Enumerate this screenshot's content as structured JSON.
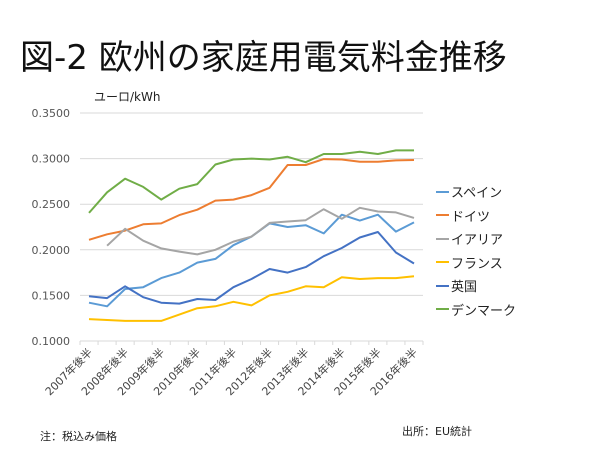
{
  "header": {
    "title": "図-2 欧州の家庭用電気料金推移"
  },
  "footer": {
    "note": "注：税込み価格",
    "source": "出所：EU統計"
  },
  "chart_data": {
    "type": "line",
    "title": "図-2 欧州の家庭用電気料金推移",
    "ylabel": "ユーロ/kWh",
    "xlabel": "",
    "ylim": [
      0.1,
      0.35
    ],
    "yticks": [
      "0.1000",
      "0.1500",
      "0.2000",
      "0.2500",
      "0.3000",
      "0.3500"
    ],
    "ytick_values": [
      0.1,
      0.15,
      0.2,
      0.25,
      0.3,
      0.35
    ],
    "grid": true,
    "legend_position": "right",
    "x": [
      "2007H2",
      "2008H1",
      "2008H2",
      "2009H1",
      "2009H2",
      "2010H1",
      "2010H2",
      "2011H1",
      "2011H2",
      "2012H1",
      "2012H2",
      "2013H1",
      "2013H2",
      "2014H1",
      "2014H2",
      "2015H1",
      "2015H2",
      "2016H1",
      "2016H2"
    ],
    "xtick_labels": [
      "2007年後半",
      "2008年後半",
      "2009年後半",
      "2010年後半",
      "2011年後半",
      "2012年後半",
      "2013年後半",
      "2014年後半",
      "2015年後半",
      "2016年後半"
    ],
    "xtick_label_indices": [
      0,
      2,
      4,
      6,
      8,
      10,
      12,
      14,
      16,
      18
    ],
    "series": [
      {
        "name": "スペイン",
        "color": "#5b9bd5",
        "values": [
          0.142,
          0.138,
          0.157,
          0.159,
          0.169,
          0.175,
          0.186,
          0.19,
          0.205,
          0.2145,
          0.229,
          0.225,
          0.227,
          0.218,
          0.2385,
          0.232,
          0.2385,
          0.22,
          0.23
        ]
      },
      {
        "name": "ドイツ",
        "color": "#ed7d31",
        "values": [
          0.211,
          0.217,
          0.221,
          0.228,
          0.229,
          0.238,
          0.244,
          0.254,
          0.255,
          0.26,
          0.268,
          0.293,
          0.293,
          0.2995,
          0.299,
          0.2965,
          0.2965,
          0.298,
          0.2985
        ]
      },
      {
        "name": "イアリア",
        "color": "#a5a5a5",
        "values": [
          null,
          0.2045,
          0.223,
          0.21,
          0.2015,
          0.198,
          0.195,
          0.2,
          0.209,
          0.2145,
          0.2295,
          0.231,
          0.2325,
          0.2445,
          0.234,
          0.246,
          0.242,
          0.241,
          0.235
        ]
      },
      {
        "name": "フランス",
        "color": "#ffc000",
        "values": [
          0.124,
          0.123,
          0.122,
          0.122,
          0.122,
          0.129,
          0.136,
          0.138,
          0.143,
          0.139,
          0.15,
          0.154,
          0.16,
          0.159,
          0.17,
          0.168,
          0.169,
          0.169,
          0.171
        ]
      },
      {
        "name": "英国",
        "color": "#4472c4",
        "values": [
          0.149,
          0.147,
          0.16,
          0.148,
          0.142,
          0.141,
          0.146,
          0.145,
          0.159,
          0.168,
          0.179,
          0.175,
          0.181,
          0.193,
          0.202,
          0.2135,
          0.2195,
          0.197,
          0.185
        ]
      },
      {
        "name": "デンマーク",
        "color": "#70ad47",
        "values": [
          0.2405,
          0.263,
          0.278,
          0.269,
          0.255,
          0.267,
          0.272,
          0.2935,
          0.299,
          0.3,
          0.299,
          0.302,
          0.296,
          0.305,
          0.305,
          0.3075,
          0.305,
          0.309,
          0.309
        ]
      }
    ]
  }
}
